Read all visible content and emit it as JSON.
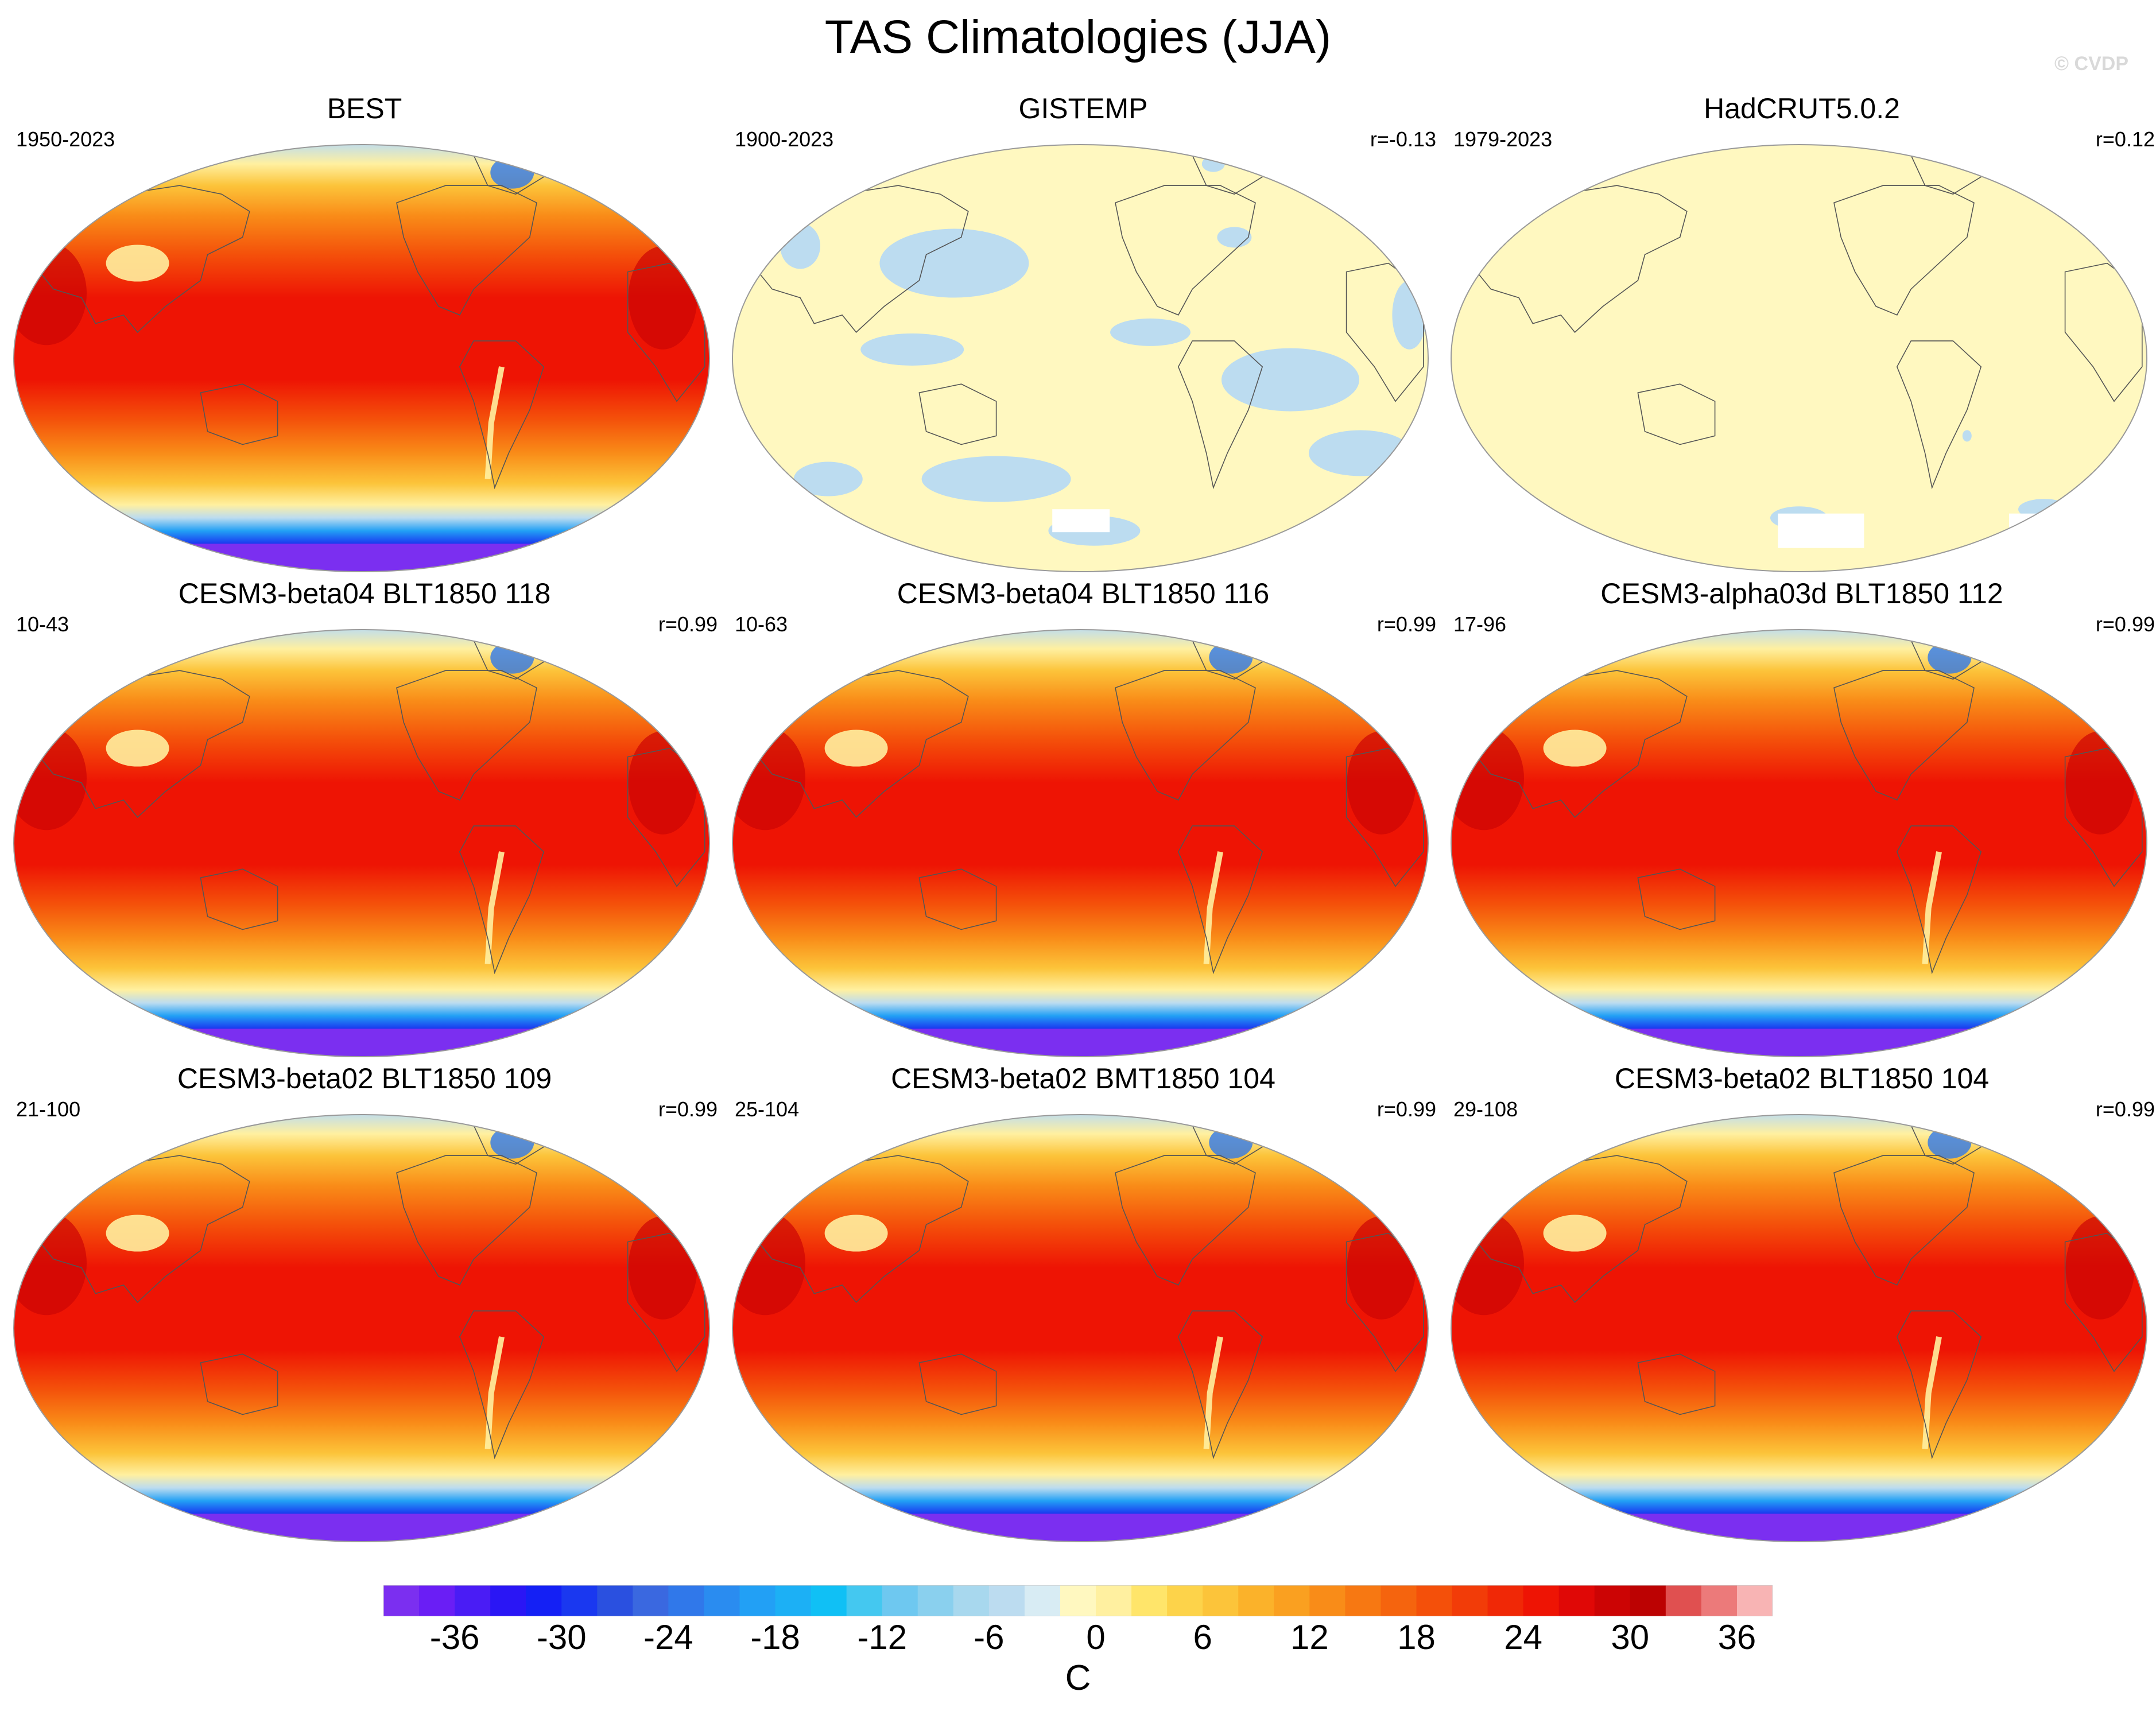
{
  "title": "TAS Climatologies (JJA)",
  "watermark": "© CVDP",
  "colors": {
    "land_outline": "#555555",
    "border": "#999999"
  },
  "chart_data": {
    "type": "heatmap",
    "projection": "Robinson",
    "variable": "TAS",
    "units": "C",
    "colorbar": {
      "levels": [
        -40,
        -38,
        -36,
        -34,
        -32,
        -30,
        -28,
        -26,
        -24,
        -22,
        -20,
        -18,
        -16,
        -14,
        -12,
        -10,
        -8,
        -6,
        -4,
        -2,
        0,
        2,
        4,
        6,
        8,
        10,
        12,
        14,
        16,
        18,
        20,
        22,
        24,
        26,
        28,
        30,
        32,
        34,
        36,
        38,
        40,
        42
      ],
      "tick_labels": [
        "-36",
        "-30",
        "-24",
        "-18",
        "-12",
        "-6",
        "0",
        "6",
        "12",
        "18",
        "24",
        "30",
        "36"
      ],
      "tick_values": [
        -36,
        -30,
        -24,
        -18,
        -12,
        -6,
        0,
        6,
        12,
        18,
        24,
        30,
        36
      ],
      "colors": [
        "#7b2ff0",
        "#6a1ef5",
        "#4a1cf5",
        "#2a16f5",
        "#1420f5",
        "#1a38f0",
        "#2a50e0",
        "#3a68e0",
        "#3078ea",
        "#2a8cf0",
        "#22a0f5",
        "#1cb0f5",
        "#10c0f5",
        "#44c8f0",
        "#6ec8f0",
        "#8ad0ee",
        "#a8d8ee",
        "#bcdcf0",
        "#d8ecf4",
        "#fff8c0",
        "#fff0a0",
        "#ffe56a",
        "#fdd34a",
        "#fcc43a",
        "#fbb22a",
        "#faa020",
        "#f98c18",
        "#f77812",
        "#f5640e",
        "#f4500a",
        "#f23c08",
        "#f02806",
        "#ee1404",
        "#e00806",
        "#cc0404",
        "#bc0202",
        "#e05050",
        "#ec7a7a",
        "#f8b4b4"
      ]
    },
    "panels": [
      {
        "title": "BEST",
        "period": "1950-2023",
        "r": "",
        "style": "full"
      },
      {
        "title": "GISTEMP",
        "period": "1900-2023",
        "r": "r=-0.13",
        "style": "anomaly"
      },
      {
        "title": "HadCRUT5.0.2",
        "period": "1979-2023",
        "r": "r=0.12",
        "style": "flat"
      },
      {
        "title": "CESM3-beta04 BLT1850 118",
        "period": "10-43",
        "r": "r=0.99",
        "style": "full"
      },
      {
        "title": "CESM3-beta04 BLT1850 116",
        "period": "10-63",
        "r": "r=0.99",
        "style": "full"
      },
      {
        "title": "CESM3-alpha03d BLT1850 112",
        "period": "17-96",
        "r": "r=0.99",
        "style": "full"
      },
      {
        "title": "CESM3-beta02 BLT1850 109",
        "period": "21-100",
        "r": "r=0.99",
        "style": "full"
      },
      {
        "title": "CESM3-beta02 BMT1850 104",
        "period": "25-104",
        "r": "r=0.99",
        "style": "full"
      },
      {
        "title": "CESM3-beta02 BLT1850 104",
        "period": "29-108",
        "r": "r=0.99",
        "style": "full"
      }
    ]
  }
}
